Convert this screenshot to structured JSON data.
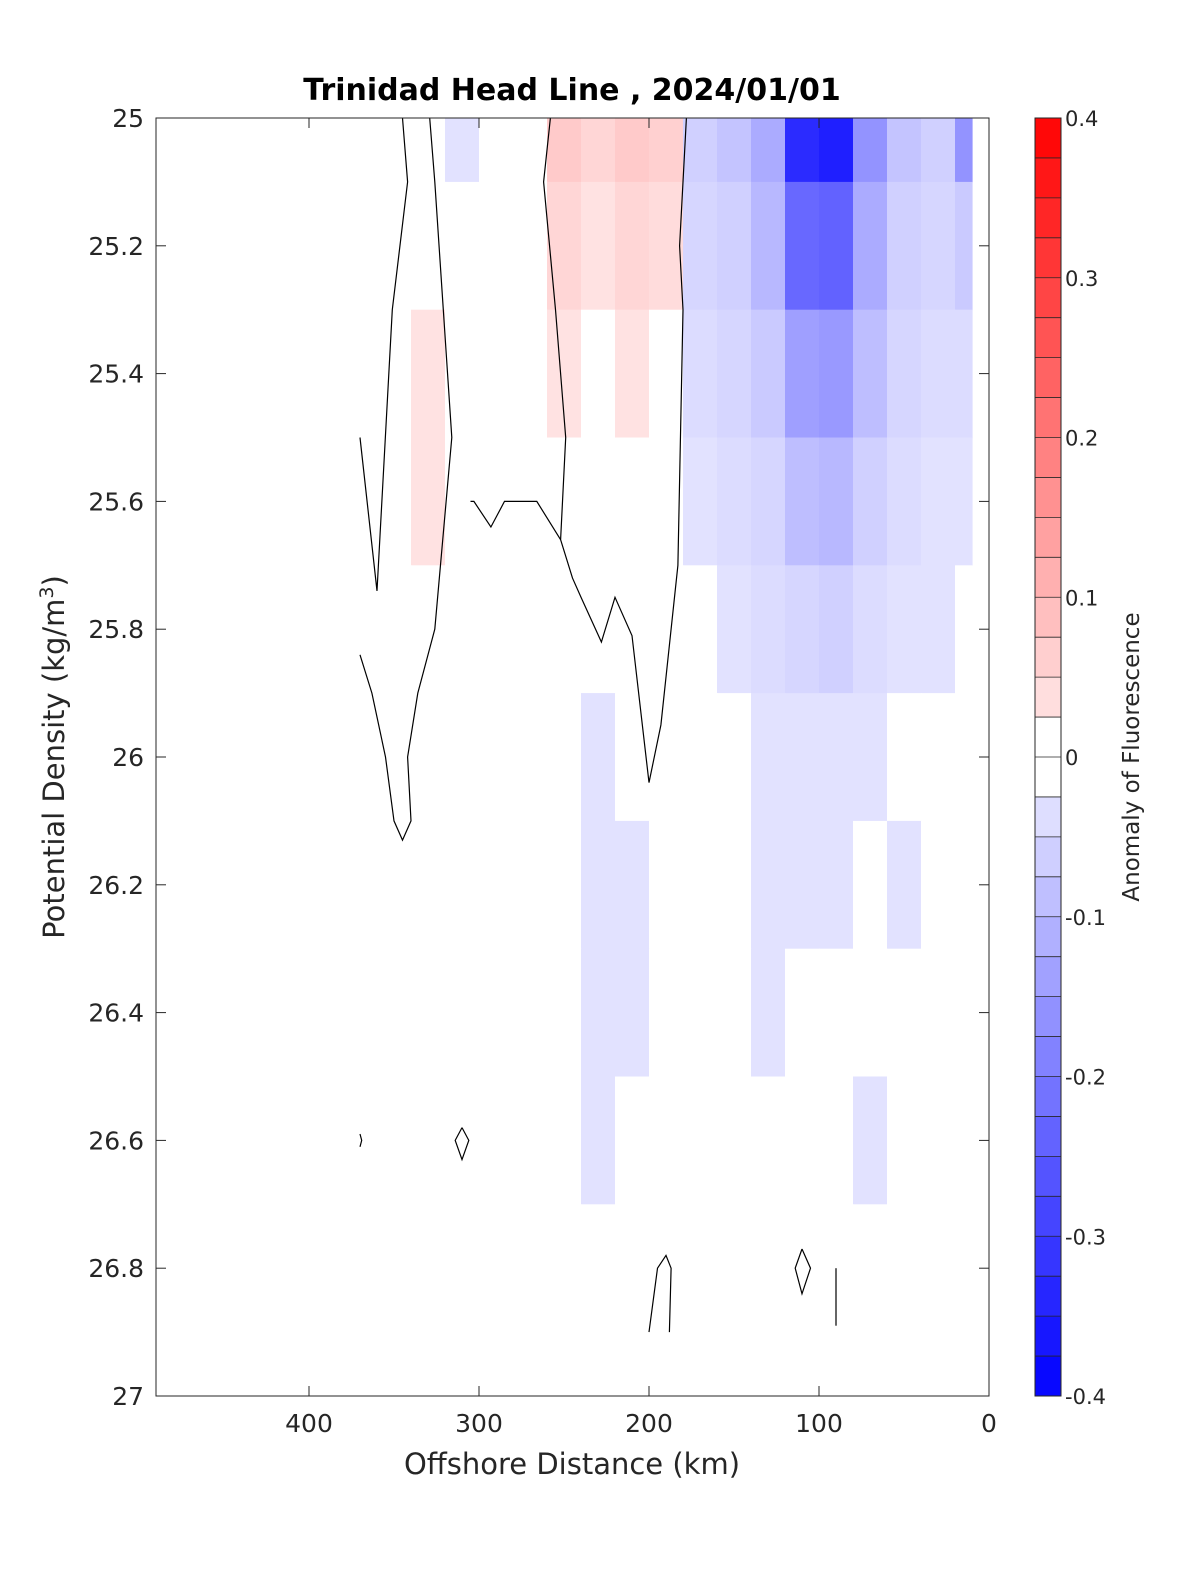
{
  "chart_data": {
    "type": "heatmap",
    "title": "Trinidad Head Line , 2024/01/01",
    "xlabel": "Offshore Distance (km)",
    "ylabel_main": "Potential Density (kg/m",
    "ylabel_sup": "3",
    "ylabel_close": ")",
    "xlim": [
      490,
      0
    ],
    "ylim": [
      25,
      27
    ],
    "y_reversed": true,
    "xticks": [
      400,
      300,
      200,
      100,
      0
    ],
    "xtick_labels": [
      "400",
      "300",
      "200",
      "100",
      "0"
    ],
    "yticks": [
      25,
      25.2,
      25.4,
      25.6,
      25.8,
      26,
      26.2,
      26.4,
      26.6,
      26.8,
      27
    ],
    "ytick_labels": [
      "25",
      "25.2",
      "25.4",
      "25.6",
      "25.8",
      "26",
      "26.2",
      "26.4",
      "26.6",
      "26.8",
      "27"
    ],
    "colorbar": {
      "label": "Anomaly of Fluorescence",
      "limits": [
        -0.4,
        0.4
      ],
      "n_levels": 32,
      "ticks": [
        0.4,
        0.3,
        0.2,
        0.1,
        0,
        -0.1,
        -0.2,
        -0.3,
        -0.4
      ],
      "tick_labels": [
        "0.4",
        "0.3",
        "0.2",
        "0.1",
        "0",
        "-0.1",
        "-0.2",
        "-0.3",
        "-0.4"
      ],
      "colors": {
        "negative": "#0000ff",
        "zero": "#ffffff",
        "positive": "#ff0000"
      }
    },
    "grid": false,
    "data_coverage_x": [
      10,
      370
    ],
    "grid_x_km": [
      370,
      350,
      330,
      310,
      290,
      270,
      250,
      230,
      210,
      190,
      170,
      150,
      130,
      110,
      90,
      70,
      50,
      30,
      10
    ],
    "grid_sigma": [
      25.0,
      25.2,
      25.4,
      25.6,
      25.8,
      26.0,
      26.2,
      26.4,
      26.6,
      26.8,
      26.9
    ],
    "anomaly_grid": [
      [
        -0.02,
        -0.02,
        0.0,
        -0.03,
        -0.02,
        0.0,
        0.07,
        0.05,
        0.07,
        0.06,
        -0.06,
        -0.08,
        -0.12,
        -0.33,
        -0.35,
        -0.16,
        -0.08,
        -0.06,
        -0.16
      ],
      [
        -0.02,
        -0.01,
        0.02,
        0.0,
        -0.02,
        0.0,
        0.05,
        0.03,
        0.05,
        0.04,
        -0.05,
        -0.06,
        -0.1,
        -0.23,
        -0.24,
        -0.12,
        -0.06,
        -0.05,
        -0.07
      ],
      [
        -0.02,
        0.02,
        0.03,
        0.01,
        0.0,
        0.0,
        0.03,
        0.02,
        0.03,
        0.02,
        -0.04,
        -0.05,
        -0.07,
        -0.14,
        -0.15,
        -0.09,
        -0.05,
        -0.04,
        -0.04
      ],
      [
        -0.01,
        0.0,
        0.03,
        0.01,
        0.0,
        0.0,
        0.02,
        0.01,
        0.02,
        0.01,
        -0.03,
        -0.04,
        -0.05,
        -0.09,
        -0.1,
        -0.06,
        -0.04,
        -0.03,
        -0.03
      ],
      [
        0.0,
        0.0,
        0.02,
        0.0,
        0.0,
        0.0,
        0.0,
        0.0,
        0.0,
        0.0,
        -0.02,
        -0.03,
        -0.04,
        -0.05,
        -0.06,
        -0.04,
        -0.03,
        -0.03,
        -0.02
      ],
      [
        0.0,
        0.0,
        0.0,
        0.0,
        0.0,
        -0.01,
        -0.02,
        -0.03,
        -0.02,
        -0.01,
        -0.02,
        -0.02,
        -0.03,
        -0.03,
        -0.03,
        -0.03,
        -0.02,
        -0.02,
        -0.02
      ],
      [
        0.0,
        0.0,
        0.0,
        0.0,
        0.0,
        -0.01,
        -0.02,
        -0.03,
        -0.03,
        -0.01,
        -0.01,
        -0.02,
        -0.03,
        -0.03,
        -0.03,
        -0.02,
        -0.03,
        -0.02,
        -0.02
      ],
      [
        0.0,
        0.0,
        0.0,
        0.0,
        0.0,
        -0.01,
        -0.02,
        -0.03,
        -0.03,
        -0.01,
        -0.01,
        -0.02,
        -0.03,
        -0.02,
        -0.02,
        -0.02,
        -0.02,
        -0.01,
        -0.01
      ],
      [
        0.0,
        0.0,
        0.0,
        0.0,
        0.0,
        0.0,
        -0.02,
        -0.03,
        -0.02,
        -0.01,
        0.0,
        -0.01,
        -0.02,
        -0.02,
        -0.02,
        -0.03,
        -0.02,
        -0.02,
        0.0
      ],
      [
        0.0,
        0.0,
        0.0,
        0.0,
        0.0,
        0.0,
        -0.02,
        -0.02,
        -0.02,
        0.0,
        0.0,
        0.0,
        -0.02,
        -0.01,
        -0.02,
        -0.02,
        -0.01,
        0.0,
        0.0
      ],
      [
        0.0,
        0.0,
        0.0,
        0.0,
        0.0,
        0.0,
        -0.02,
        -0.02,
        -0.02,
        0.0,
        0.0,
        0.0,
        0.0,
        0.0,
        0.0,
        0.0,
        0.0,
        0.0,
        0.0
      ]
    ],
    "zero_contours": [
      [
        [
          370,
          25.5
        ],
        [
          360,
          25.74
        ],
        [
          351,
          25.3
        ],
        [
          342,
          25.1
        ],
        [
          345,
          25.0
        ]
      ],
      [
        [
          370,
          25.84
        ],
        [
          363,
          25.9
        ],
        [
          355,
          26.0
        ],
        [
          350,
          26.1
        ],
        [
          345,
          26.13
        ],
        [
          340,
          26.1
        ],
        [
          342,
          26.0
        ],
        [
          336,
          25.9
        ],
        [
          326,
          25.8
        ],
        [
          316,
          25.5
        ],
        [
          321,
          25.3
        ],
        [
          326,
          25.1
        ],
        [
          329,
          25.0
        ]
      ],
      [
        [
          258,
          25.0
        ],
        [
          262,
          25.1
        ],
        [
          255,
          25.3
        ],
        [
          249,
          25.5
        ],
        [
          252,
          25.66
        ],
        [
          245,
          25.72
        ],
        [
          240,
          25.75
        ],
        [
          228,
          25.82
        ],
        [
          220,
          25.75
        ],
        [
          210,
          25.81
        ],
        [
          200,
          26.04
        ],
        [
          193,
          25.95
        ],
        [
          183,
          25.7
        ],
        [
          180,
          25.3
        ],
        [
          182,
          25.2
        ],
        [
          178,
          25.0
        ]
      ],
      [
        [
          252,
          25.66
        ],
        [
          266,
          25.6
        ],
        [
          285,
          25.6
        ],
        [
          293,
          25.64
        ],
        [
          303,
          25.6
        ],
        [
          305,
          25.6
        ]
      ],
      [
        [
          310,
          26.58
        ],
        [
          306,
          26.6
        ],
        [
          310,
          26.63
        ],
        [
          314,
          26.6
        ],
        [
          310,
          26.58
        ]
      ],
      [
        [
          110,
          26.77
        ],
        [
          105,
          26.8
        ],
        [
          110,
          26.84
        ],
        [
          114,
          26.8
        ],
        [
          110,
          26.77
        ]
      ],
      [
        [
          200,
          26.9
        ],
        [
          195,
          26.8
        ],
        [
          190,
          26.78
        ],
        [
          187,
          26.8
        ],
        [
          188,
          26.9
        ]
      ],
      [
        [
          90,
          26.8
        ],
        [
          90,
          26.89
        ]
      ],
      [
        [
          370,
          26.59
        ],
        [
          369,
          26.6
        ],
        [
          370,
          26.61
        ]
      ]
    ]
  }
}
